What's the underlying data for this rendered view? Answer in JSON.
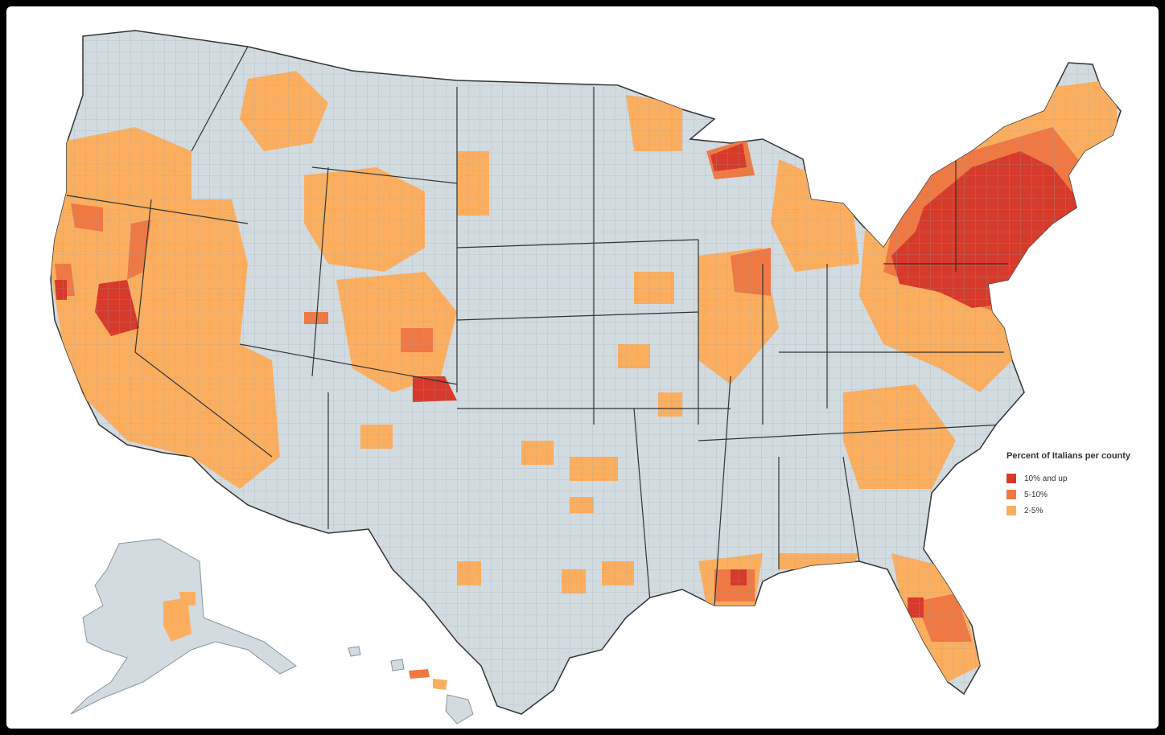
{
  "legend": {
    "title": "Percent of Italians per county",
    "items": [
      {
        "label": "10% and up",
        "color": "#d63a2b"
      },
      {
        "label": "5-10%",
        "color": "#ef7843"
      },
      {
        "label": "2-5%",
        "color": "#fcae5f"
      }
    ]
  },
  "colors": {
    "base": "#d1dbe0",
    "border": "#8a959c",
    "state_border": "#333333",
    "background": "#ffffff",
    "frame": "#000000"
  }
}
